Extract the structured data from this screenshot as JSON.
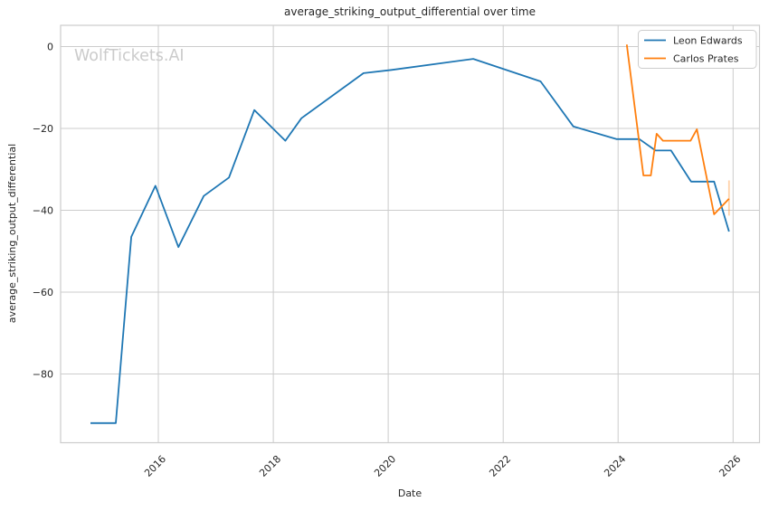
{
  "watermark": "WolfTickets.AI",
  "legend": {
    "items": [
      {
        "label": "Leon Edwards",
        "color": "#1f77b4"
      },
      {
        "label": "Carlos Prates",
        "color": "#ff7f0e"
      }
    ]
  },
  "chart_data": {
    "type": "line",
    "title": "average_striking_output_differential over time",
    "xlabel": "Date",
    "ylabel": "average_striking_output_differential",
    "x_ticks": [
      2016,
      2018,
      2020,
      2022,
      2024,
      2026
    ],
    "y_ticks": [
      0,
      -20,
      -40,
      -60,
      -80
    ],
    "xlim": [
      2014.3,
      2026.46
    ],
    "ylim": [
      -96.8,
      5.2
    ],
    "grid": true,
    "legend_position": "upper-right",
    "series": [
      {
        "name": "Leon Edwards",
        "color": "#1f77b4",
        "points": [
          [
            2014.82,
            -92
          ],
          [
            2015.26,
            -92
          ],
          [
            2015.53,
            -46.5
          ],
          [
            2015.95,
            -34
          ],
          [
            2016.35,
            -49
          ],
          [
            2016.79,
            -36.5
          ],
          [
            2017.23,
            -32
          ],
          [
            2017.67,
            -15.5
          ],
          [
            2018.21,
            -23
          ],
          [
            2018.49,
            -17.5
          ],
          [
            2019.57,
            -6.5
          ],
          [
            2020.06,
            -5.7
          ],
          [
            2021.48,
            -3
          ],
          [
            2022.65,
            -8.5
          ],
          [
            2023.22,
            -19.5
          ],
          [
            2023.97,
            -22.6
          ],
          [
            2024.37,
            -22.6
          ],
          [
            2024.65,
            -25.4
          ],
          [
            2024.92,
            -25.4
          ],
          [
            2025.27,
            -33
          ],
          [
            2025.67,
            -33
          ],
          [
            2025.93,
            -45.2
          ]
        ]
      },
      {
        "name": "Carlos Prates",
        "color": "#ff7f0e",
        "points": [
          [
            2024.15,
            0.5
          ],
          [
            2024.44,
            -31.5
          ],
          [
            2024.57,
            -31.5
          ],
          [
            2024.67,
            -21.3
          ],
          [
            2024.78,
            -23
          ],
          [
            2025.26,
            -23
          ],
          [
            2025.37,
            -20.2
          ],
          [
            2025.67,
            -41
          ],
          [
            2025.93,
            -37.2
          ]
        ],
        "error_bar": {
          "x": 2025.93,
          "y_range": [
            -32.7,
            -41.3
          ]
        }
      }
    ]
  }
}
